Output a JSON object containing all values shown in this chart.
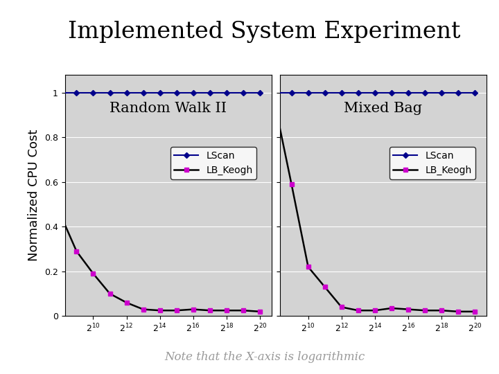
{
  "title": "Implemented System Experiment",
  "ylabel": "Normalized CPU Cost",
  "footnote": "Note that the X-axis is logarithmic",
  "subplot_titles": [
    "Random Walk II",
    "Mixed Bag"
  ],
  "lscan_color": "#00008B",
  "lb_keogh_color": "#CC00CC",
  "line_color": "#000000",
  "bg_color": "#D3D3D3",
  "title_fontsize": 24,
  "ylabel_fontsize": 13,
  "legend_fontsize": 10,
  "subplot_title_fontsize": 15,
  "footnote_fontsize": 12,
  "lb_keogh_rw2": [
    0.46,
    0.29,
    0.19,
    0.1,
    0.06,
    0.03,
    0.025,
    0.025,
    0.03,
    0.025,
    0.025,
    0.025,
    0.02
  ],
  "lb_keogh_mb": [
    0.95,
    0.59,
    0.22,
    0.13,
    0.04,
    0.025,
    0.025,
    0.035,
    0.03,
    0.025,
    0.025,
    0.02,
    0.02
  ]
}
